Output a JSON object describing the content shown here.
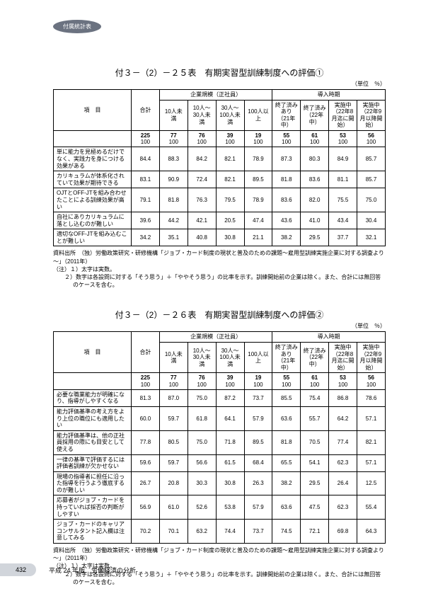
{
  "badge": "付属統計表",
  "table1": {
    "title": "付３－（2）－２５表　有期実習型訓練制度への評価①",
    "unit": "（単位　％）",
    "group_headers": [
      "企業規模（正社員）",
      "導入時期"
    ],
    "sub_headers": [
      "項　目",
      "合計",
      "10人未満",
      "10人～30人未満",
      "30人～100人未満",
      "100人以上",
      "終了済みあり（21年中）",
      "終了済み（22年中）",
      "実施中（22年8月迄に開始）",
      "実施中（22年9月以降開始）"
    ],
    "calc_row1": [
      "225",
      "77",
      "76",
      "39",
      "19",
      "55",
      "61",
      "53",
      "56"
    ],
    "calc_row2": [
      "100",
      "100",
      "100",
      "100",
      "100",
      "100",
      "100",
      "100",
      "100"
    ],
    "rows": [
      {
        "label": "単に能力を見極めるだけでなく、実践力を身につける効果がある",
        "v": [
          "84.4",
          "88.3",
          "84.2",
          "82.1",
          "78.9",
          "87.3",
          "80.3",
          "84.9",
          "85.7"
        ]
      },
      {
        "label": "カリキュラムが体系化されていて効果が期待できる",
        "v": [
          "83.1",
          "90.9",
          "72.4",
          "82.1",
          "89.5",
          "81.8",
          "83.6",
          "81.1",
          "85.7"
        ]
      },
      {
        "label": "OJTとOFF-JTを組み合わせたことによる訓練効果が高い",
        "v": [
          "79.1",
          "81.8",
          "76.3",
          "79.5",
          "78.9",
          "83.6",
          "82.0",
          "75.5",
          "75.0"
        ]
      },
      {
        "label": "自社にありカリキュラムに落とし込むのが難しい",
        "v": [
          "39.6",
          "44.2",
          "42.1",
          "20.5",
          "47.4",
          "43.6",
          "41.0",
          "43.4",
          "30.4"
        ]
      },
      {
        "label": "適切なOFF-JTを組み込むことが難しい",
        "v": [
          "34.2",
          "35.1",
          "40.8",
          "30.8",
          "21.1",
          "38.2",
          "29.5",
          "37.7",
          "32.1"
        ]
      }
    ],
    "source": "資料出所　（独）労働政策研究・研修機構「ジョブ・カード制度の現状と普及のための課題～雇用型訓練実施企業に対する調査より～」（2011年）",
    "note_label": "（注）",
    "notes": [
      "１）太字は実数。",
      "２）数字は各設問に対する「そう思う」＋「ややそう思う」の比率を示す。訓練開始前の企業は除く。また、合計には無回答のケースを含む。"
    ]
  },
  "table2": {
    "title": "付３－（2）－２６表　有期実習型訓練制度への評価②",
    "unit": "（単位　％）",
    "group_headers": [
      "企業規模（正社員）",
      "導入時期"
    ],
    "sub_headers": [
      "項　目",
      "合計",
      "10人未満",
      "10人～30人未満",
      "30人～100人未満",
      "100人以上",
      "終了済みあり（21年中）",
      "終了済み（22年中）",
      "実施中（22年8月迄に開始）",
      "実施中（22年9月以降開始）"
    ],
    "calc_row1": [
      "225",
      "77",
      "76",
      "39",
      "19",
      "55",
      "61",
      "53",
      "56"
    ],
    "calc_row2": [
      "100",
      "100",
      "100",
      "100",
      "100",
      "100",
      "100",
      "100",
      "100"
    ],
    "rows": [
      {
        "label": "必要な職業能力が明確になり、指導がしやすくなる",
        "v": [
          "81.3",
          "87.0",
          "75.0",
          "87.2",
          "73.7",
          "85.5",
          "75.4",
          "86.8",
          "78.6"
        ]
      },
      {
        "label": "能力評価基準の考え方をより上位の職位にも適用したい",
        "v": [
          "60.0",
          "59.7",
          "61.8",
          "64.1",
          "57.9",
          "63.6",
          "55.7",
          "64.2",
          "57.1"
        ]
      },
      {
        "label": "能力評価基準は、他の正社員採用の際にも目安として使える",
        "v": [
          "77.8",
          "80.5",
          "75.0",
          "71.8",
          "89.5",
          "81.8",
          "70.5",
          "77.4",
          "82.1"
        ]
      },
      {
        "label": "一律の基準で評価するには評価者訓練が欠かせない",
        "v": [
          "59.6",
          "59.7",
          "56.6",
          "61.5",
          "68.4",
          "65.5",
          "54.1",
          "62.3",
          "57.1"
        ]
      },
      {
        "label": "現場の指導者に担任に沿った指導を行うよう徹底するのが難しい",
        "v": [
          "26.7",
          "20.8",
          "30.3",
          "30.8",
          "26.3",
          "38.2",
          "29.5",
          "26.4",
          "12.5"
        ]
      },
      {
        "label": "応募者がジョブ・カードを持っていれば採否の判断がしやすい",
        "v": [
          "56.9",
          "61.0",
          "52.6",
          "53.8",
          "57.9",
          "63.6",
          "47.5",
          "62.3",
          "55.4"
        ]
      },
      {
        "label": "ジョブ・カードのキャリアコンサルタント記入欄は注意してみる",
        "v": [
          "70.2",
          "70.1",
          "63.2",
          "74.4",
          "73.7",
          "74.5",
          "72.1",
          "69.8",
          "64.3"
        ]
      }
    ],
    "source": "資料出所　（独）労働政策研究・研修機構「ジョブ・カード制度の現状と普及のための課題～雇用型訓練実施企業に対する調査より～」（2011年）",
    "note_label": "（注）",
    "notes": [
      "１）太字は実数。",
      "２）数字は各設問に対する「そう思う」＋「ややそう思う」の比率を示す。訓練開始前の企業は除く。また、合計には無回答のケースを含む。"
    ]
  },
  "footer": {
    "page": "432",
    "text": "平成 24 年版　労働経済の分析"
  }
}
